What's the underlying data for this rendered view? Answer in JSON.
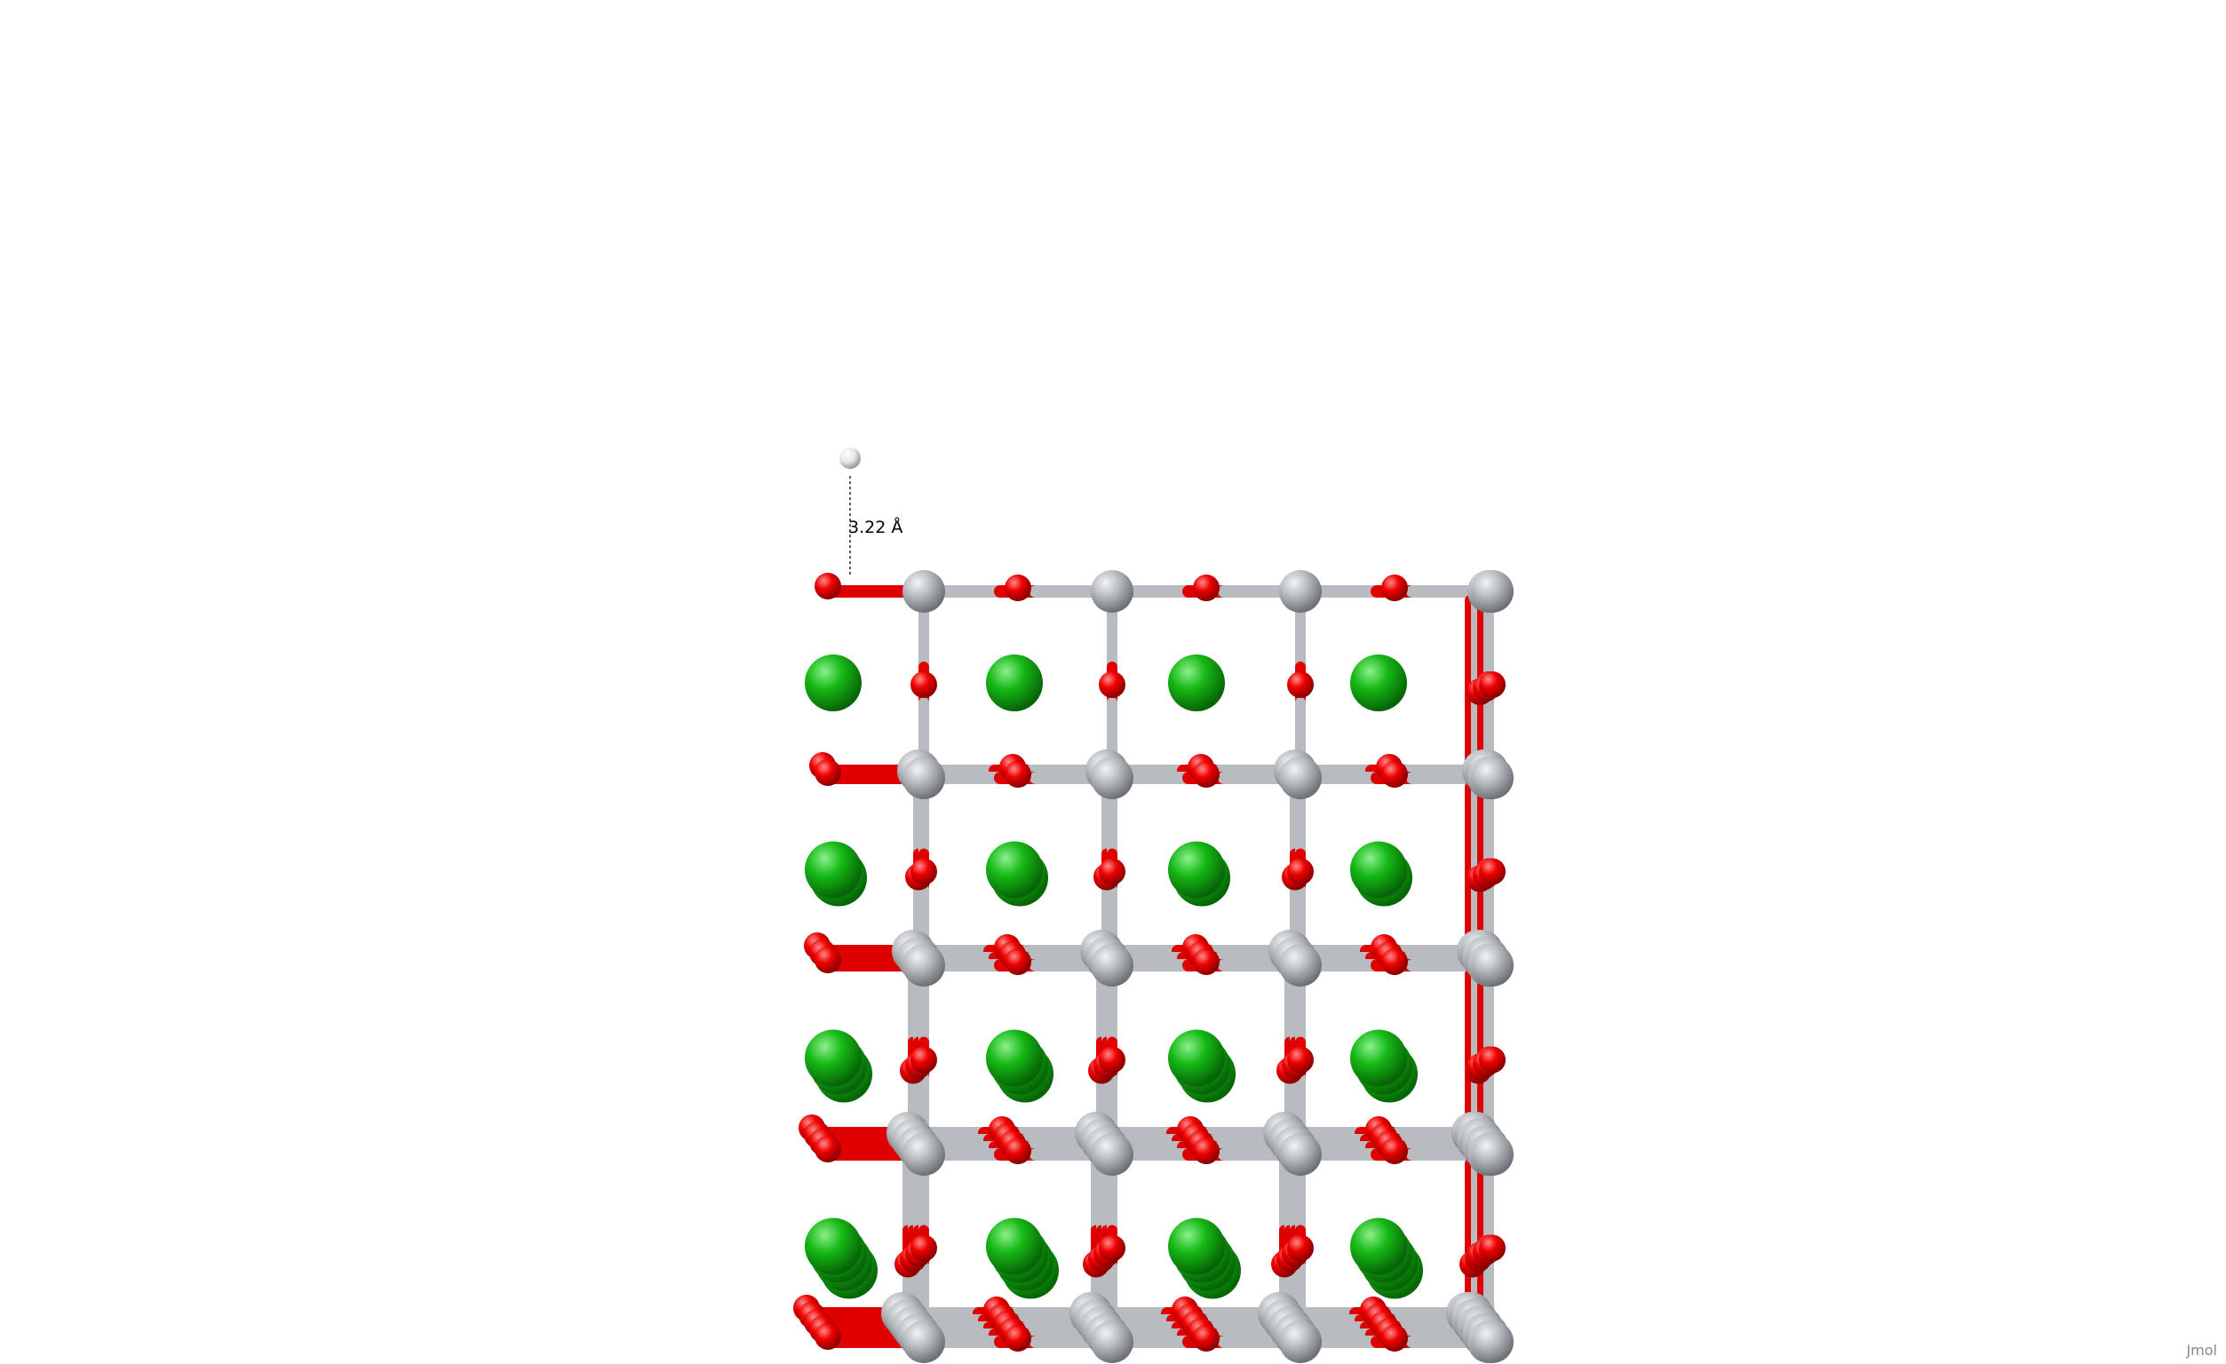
{
  "measurement": {
    "label": "3.22 Å"
  },
  "watermark": "Jmol",
  "colors": {
    "background": "#ffffff",
    "oxygen": "#e00000",
    "framework": "#b8bcc0",
    "cation": "#12b312",
    "adsorbate": "#f0f0f0"
  },
  "lattice": {
    "columns": 5,
    "rows": 5,
    "depth_layers": 5
  }
}
